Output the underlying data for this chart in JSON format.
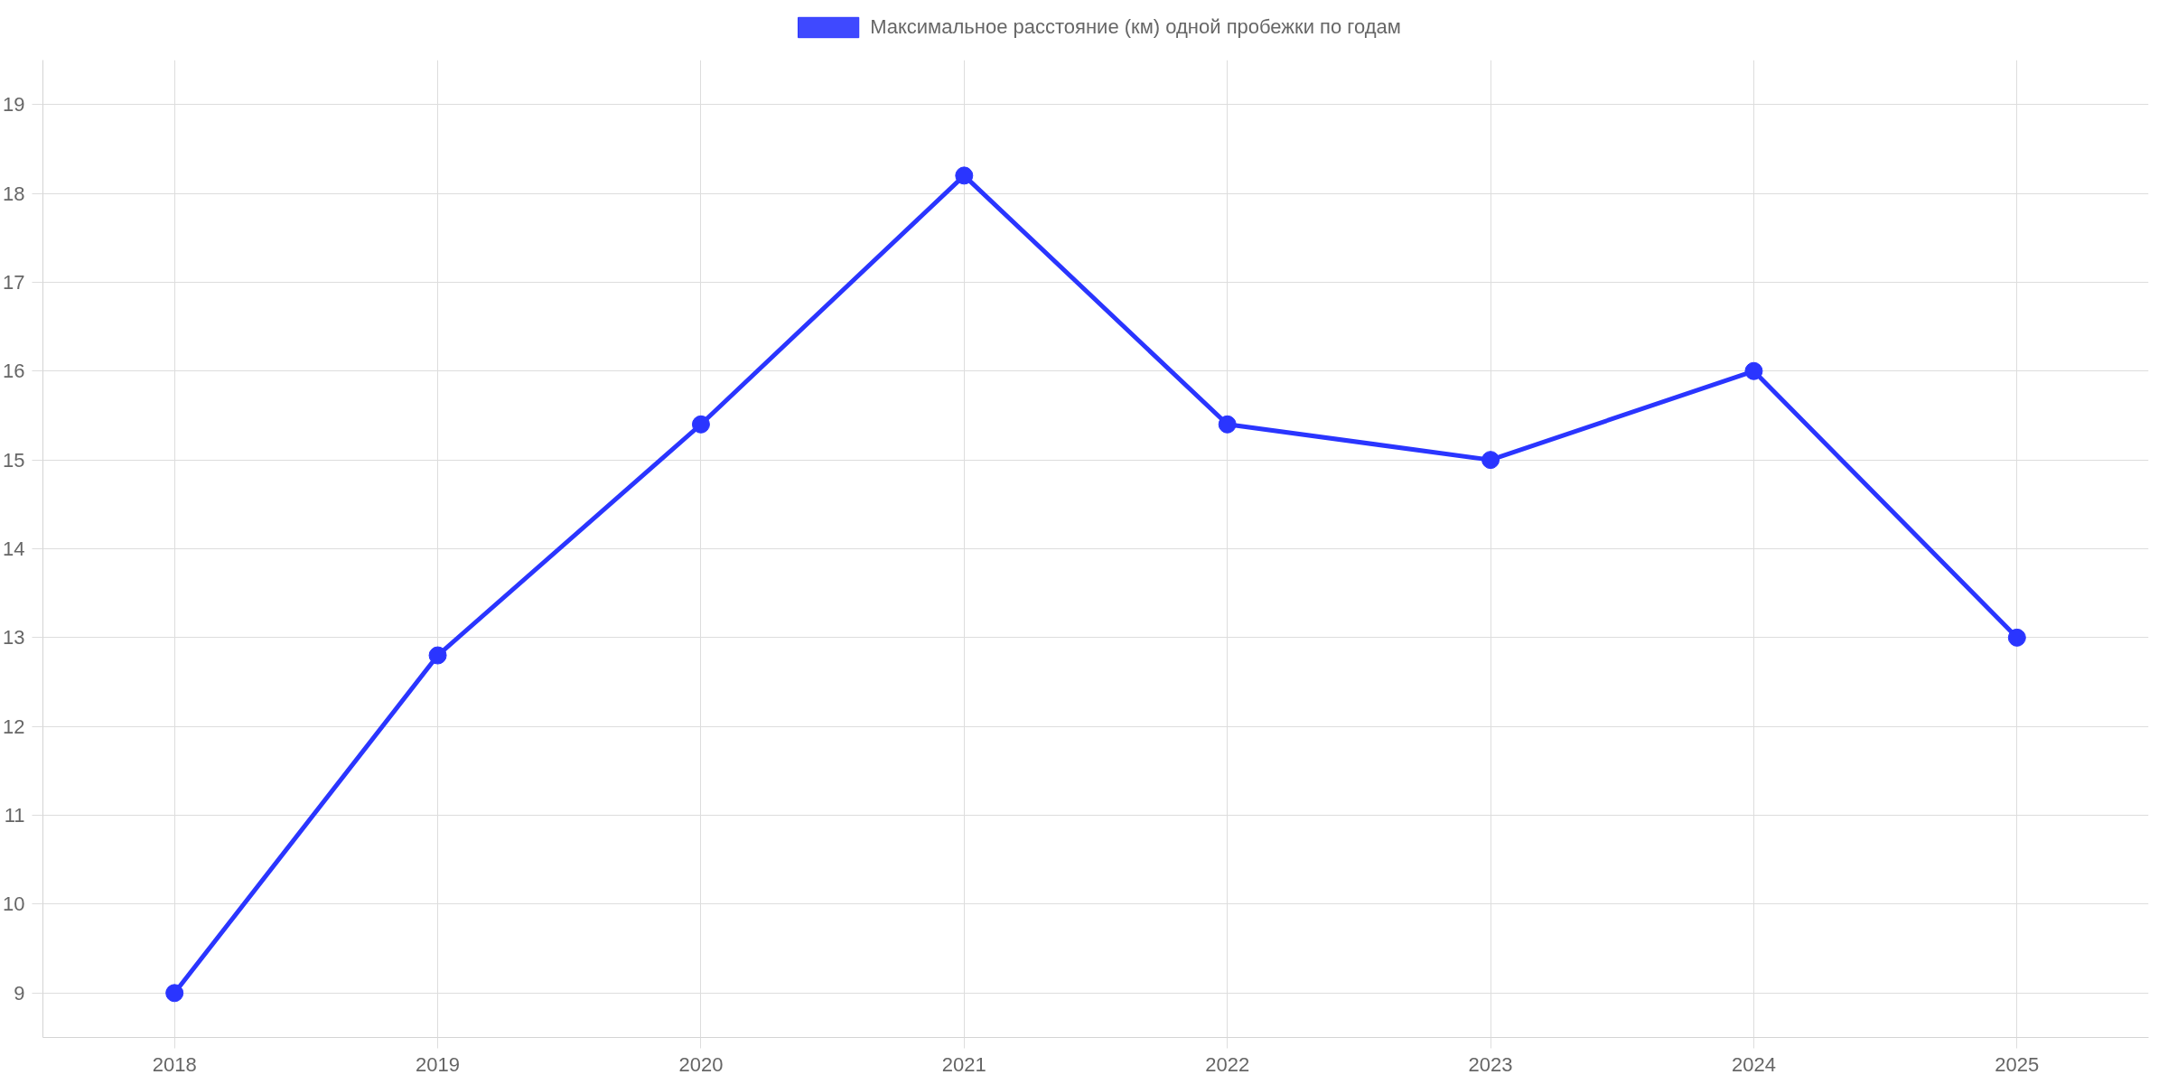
{
  "chart_data": {
    "type": "line",
    "categories": [
      "2018",
      "2019",
      "2020",
      "2021",
      "2022",
      "2023",
      "2024",
      "2025"
    ],
    "series": [
      {
        "name": "Максимальное расстояние (км) одной пробежки по годам",
        "color": "#2a35ff",
        "values": [
          9,
          12.8,
          15.4,
          18.2,
          15.4,
          15,
          16,
          13
        ]
      }
    ],
    "ylim": [
      8.5,
      19.5
    ],
    "yticks": [
      9,
      10,
      11,
      12,
      13,
      14,
      15,
      16,
      17,
      18,
      19
    ],
    "grid": true,
    "legend": "top",
    "marker": "circle",
    "line_style": "solid"
  }
}
